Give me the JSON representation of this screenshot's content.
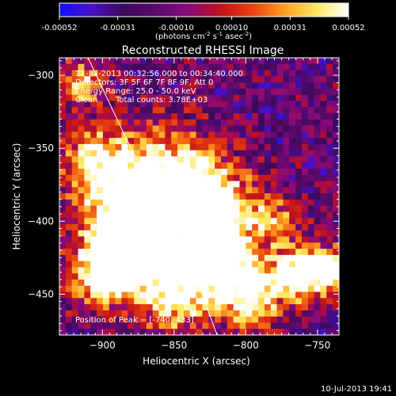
{
  "chart_data": {
    "type": "heatmap",
    "title": "Reconstructed RHESSI Image",
    "xlabel": "Heliocentric X (arcsec)",
    "ylabel": "Heliocentric Y (arcsec)",
    "xlim": [
      -930,
      -735
    ],
    "ylim": [
      -478,
      -288
    ],
    "x_ticks": [
      -900,
      -850,
      -800,
      -750
    ],
    "y_ticks": [
      -450,
      -400,
      -350,
      -300
    ],
    "colorbar": {
      "label": "(photons cm",
      "label_exp1": "-2",
      "label_mid": " s",
      "label_exp2": "-1",
      "label_tail": " asec",
      "label_exp3": "-2",
      "label_close": ")",
      "ticks": [
        -0.00052,
        -0.00031,
        -0.0001,
        0.0001,
        0.00031,
        0.00052
      ],
      "tick_labels": [
        "-0.00052",
        "-0.00031",
        "-0.00010",
        "0.00010",
        "0.00031",
        "0.00052"
      ],
      "range": [
        -0.00052,
        0.00052
      ],
      "colormap": [
        "#1010ff",
        "#4a10c8",
        "#3c0a5a",
        "#5a0a6a",
        "#8a0a7a",
        "#c0101a",
        "#e84010",
        "#ffa020",
        "#ffe860",
        "#ffffff"
      ]
    },
    "annotations": {
      "time_range": "11-Jul-2013 00:32:56.000 to 00:34:40.000",
      "detectors": "Detectors: 3F 5F 6F 7F 8F 9F, Att 0",
      "energy_range": "Energy Range: 25.0 - 50.0 keV",
      "algorithm": "Clean",
      "total_counts": "Total counts: 3.78E+03",
      "peak": "Position of Peak = [-740,-433]"
    },
    "limb_curve": [
      [
        -910,
        -288
      ],
      [
        -885,
        -340
      ],
      [
        -860,
        -390
      ],
      [
        -838,
        -430
      ],
      [
        -820,
        -478
      ]
    ],
    "peak_position": [
      -740,
      -433
    ],
    "footer_timestamp": "10-Jul-2013 19:41"
  }
}
